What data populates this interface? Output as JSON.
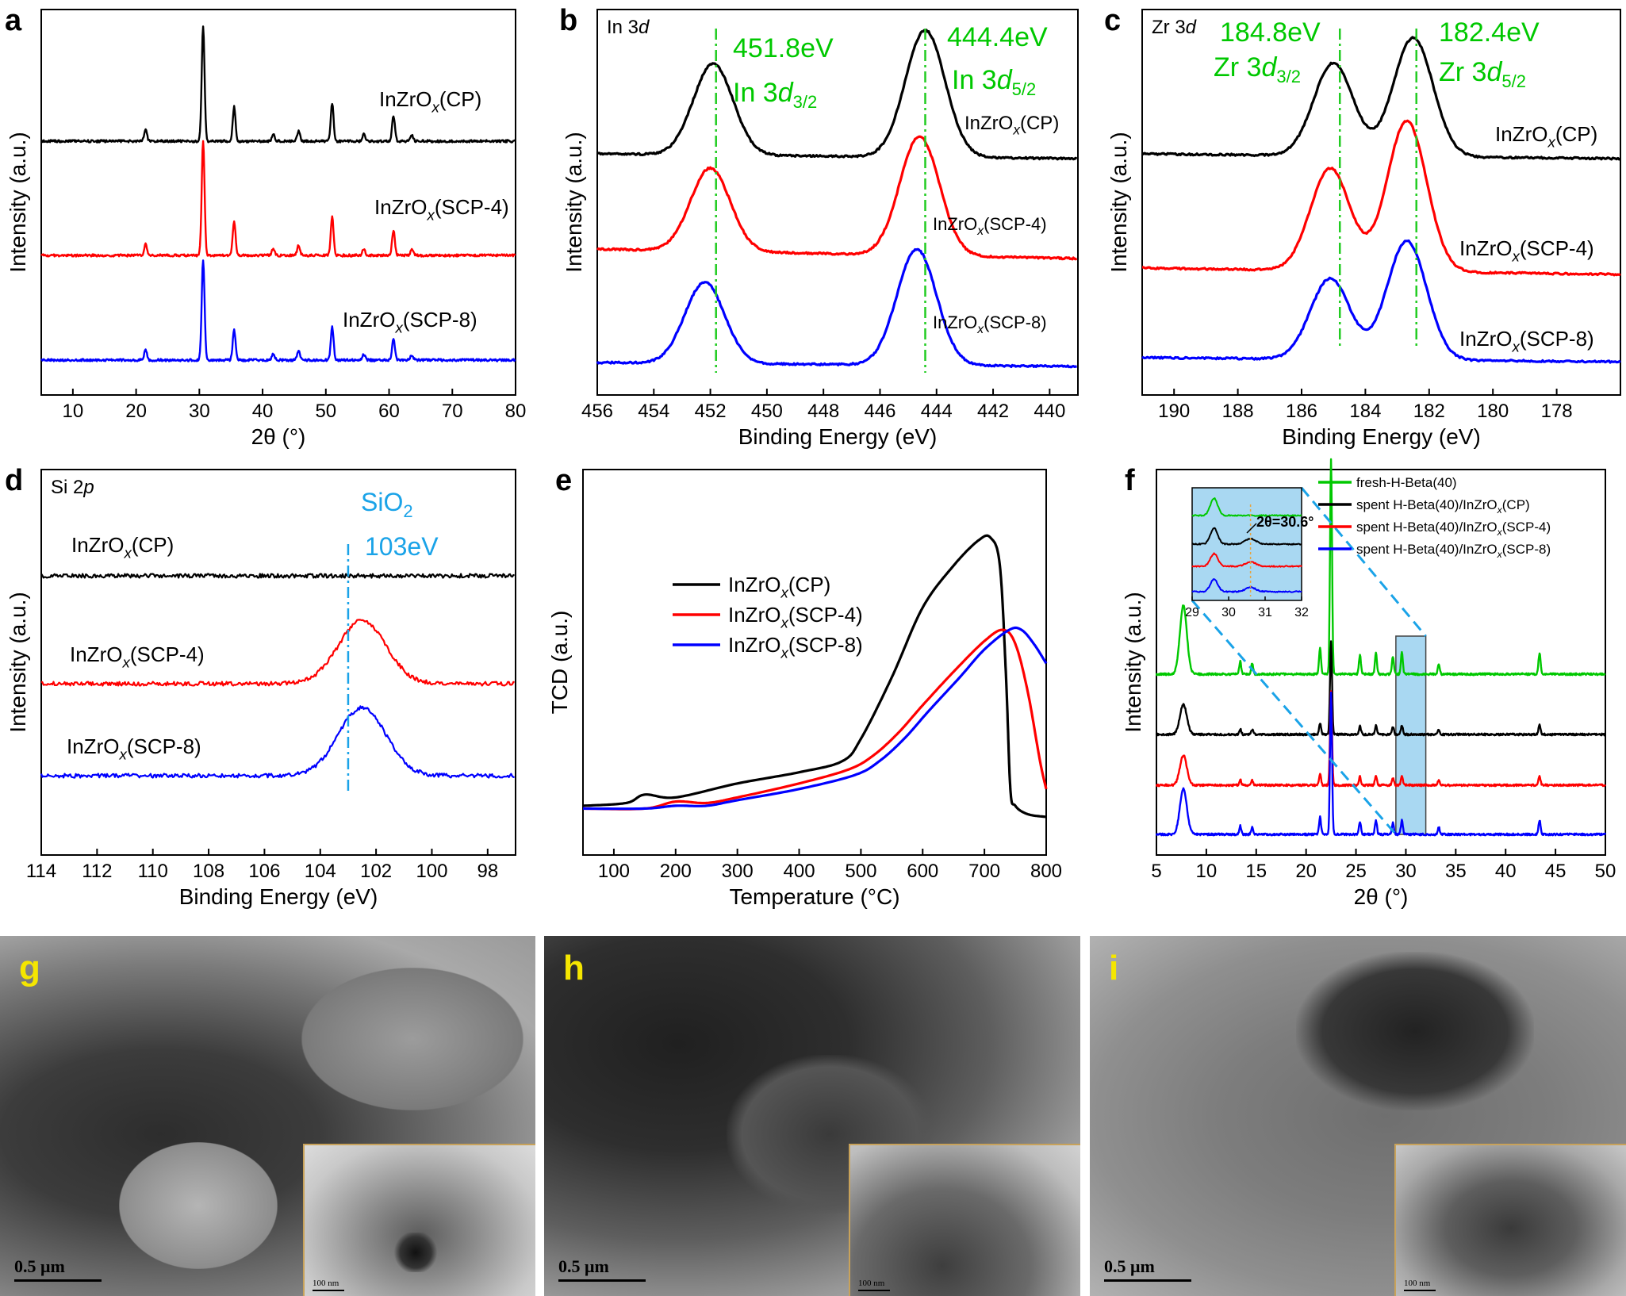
{
  "colors": {
    "black": "#000000",
    "red": "#ff0000",
    "blue": "#0000ff",
    "green": "#00c800",
    "lightblue": "#1aa3e8",
    "yellow": "#f5e600"
  },
  "panels": {
    "a": {
      "letter": "a"
    },
    "b": {
      "letter": "b",
      "label_main": "In 3",
      "label_sub": "d"
    },
    "c": {
      "letter": "c",
      "label_main": "Zr 3",
      "label_sub": "d"
    },
    "d": {
      "letter": "d",
      "label_main": "Si 2",
      "label_sub": "p"
    },
    "e": {
      "letter": "e"
    },
    "f": {
      "letter": "f"
    },
    "g": {
      "letter": "g",
      "scale_bar": "0.5 μm",
      "inset_scale_bar": "100 nm"
    },
    "h": {
      "letter": "h",
      "scale_bar": "0.5 μm",
      "inset_scale_bar": "100 nm"
    },
    "i": {
      "letter": "i",
      "scale_bar": "0.5 μm",
      "inset_scale_bar": "100 nm"
    }
  },
  "chart_data": [
    {
      "panel": "a",
      "type": "line",
      "xlabel": "2θ (°)",
      "ylabel": "Intensity (a.u.)",
      "xlim": [
        5,
        80
      ],
      "xticks": [
        10,
        20,
        30,
        40,
        50,
        60,
        70,
        80
      ],
      "series": [
        {
          "name": "InZrOx(CP)",
          "color": "#000000"
        },
        {
          "name": "InZrOx(SCP-4)",
          "color": "#ff0000"
        },
        {
          "name": "InZrOx(SCP-8)",
          "color": "#0000ff"
        }
      ],
      "peaks": [
        [
          21.5,
          0.1
        ],
        [
          30.6,
          1.0
        ],
        [
          35.5,
          0.3
        ],
        [
          41.7,
          0.06
        ],
        [
          45.7,
          0.09
        ],
        [
          51.0,
          0.33
        ],
        [
          56.0,
          0.06
        ],
        [
          60.7,
          0.22
        ],
        [
          63.6,
          0.05
        ]
      ]
    },
    {
      "panel": "b",
      "type": "line",
      "xlabel": "Binding Energy (eV)",
      "ylabel": "Intensity (a.u.)",
      "xlim": [
        456,
        439
      ],
      "xticks": [
        456,
        454,
        452,
        450,
        448,
        446,
        444,
        442,
        440
      ],
      "series": [
        {
          "name": "InZrOx(CP)",
          "color": "#000000",
          "peaks": [
            [
              451.9,
              0.72
            ],
            [
              444.4,
              1.0
            ]
          ]
        },
        {
          "name": "InZrOx(SCP-4)",
          "color": "#ff0000",
          "peaks": [
            [
              452.0,
              0.7
            ],
            [
              444.6,
              1.0
            ]
          ]
        },
        {
          "name": "InZrOx(SCP-8)",
          "color": "#0000ff",
          "peaks": [
            [
              452.2,
              0.7
            ],
            [
              444.7,
              1.0
            ]
          ]
        }
      ],
      "annotations": [
        {
          "text": "451.8eV",
          "x": 451.8,
          "sublabel_main": "In 3",
          "sublabel_italic": "d",
          "sublabel_sub": "3/2"
        },
        {
          "text": "444.4eV",
          "x": 444.4,
          "sublabel_main": "In 3",
          "sublabel_italic": "d",
          "sublabel_sub": "5/2"
        }
      ]
    },
    {
      "panel": "c",
      "type": "line",
      "xlabel": "Binding Energy (eV)",
      "ylabel": "Intensity (a.u.)",
      "xlim": [
        191,
        176
      ],
      "xticks": [
        190,
        188,
        186,
        184,
        182,
        180,
        178
      ],
      "series": [
        {
          "name": "InZrOx(CP)",
          "color": "#000000",
          "peaks": [
            [
              185.0,
              0.78
            ],
            [
              182.5,
              1.0
            ]
          ]
        },
        {
          "name": "InZrOx(SCP-4)",
          "color": "#ff0000",
          "peaks": [
            [
              185.1,
              0.68
            ],
            [
              182.7,
              1.0
            ]
          ]
        },
        {
          "name": "InZrOx(SCP-8)",
          "color": "#0000ff",
          "peaks": [
            [
              185.1,
              0.68
            ],
            [
              182.7,
              1.0
            ]
          ]
        }
      ],
      "annotations": [
        {
          "text": "184.8eV",
          "x": 184.8,
          "sublabel_main": "Zr 3",
          "sublabel_italic": "d",
          "sublabel_sub": "3/2"
        },
        {
          "text": "182.4eV",
          "x": 182.4,
          "sublabel_main": "Zr 3",
          "sublabel_italic": "d",
          "sublabel_sub": "5/2"
        }
      ]
    },
    {
      "panel": "d",
      "type": "line",
      "xlabel": "Binding Energy (eV)",
      "ylabel": "Intensity (a.u.)",
      "xlim": [
        114,
        97
      ],
      "xticks": [
        114,
        112,
        110,
        108,
        106,
        104,
        102,
        100,
        98
      ],
      "series": [
        {
          "name": "InZrOx(CP)",
          "color": "#000000"
        },
        {
          "name": "InZrOx(SCP-4)",
          "color": "#ff0000",
          "peak": [
            102.5,
            1.0
          ]
        },
        {
          "name": "InZrOx(SCP-8)",
          "color": "#0000ff",
          "peak": [
            102.5,
            1.0
          ]
        }
      ],
      "annotations": [
        {
          "text_main": "SiO",
          "text_sub": "2",
          "text2": "103eV",
          "x": 103.0
        }
      ]
    },
    {
      "panel": "e",
      "type": "line",
      "xlabel": "Temperature (°C)",
      "ylabel": "TCD (a.u.)",
      "xlim": [
        50,
        800
      ],
      "xticks": [
        100,
        200,
        300,
        400,
        500,
        600,
        700,
        800
      ],
      "legend": "center",
      "series": [
        {
          "name": "InZrOx(CP)",
          "color": "#000000",
          "x": [
            50,
            120,
            150,
            200,
            300,
            400,
            470,
            500,
            550,
            600,
            650,
            690,
            710,
            725,
            735,
            742,
            750,
            770,
            800
          ],
          "y": [
            0.04,
            0.05,
            0.08,
            0.07,
            0.12,
            0.16,
            0.2,
            0.28,
            0.5,
            0.75,
            0.9,
            0.99,
            1.0,
            0.9,
            0.5,
            0.1,
            0.04,
            0.01,
            0.0
          ]
        },
        {
          "name": "InZrOx(SCP-4)",
          "color": "#ff0000",
          "x": [
            50,
            150,
            200,
            250,
            300,
            400,
            480,
            520,
            560,
            600,
            650,
            700,
            730,
            750,
            770,
            790,
            800
          ],
          "y": [
            0.03,
            0.03,
            0.055,
            0.05,
            0.07,
            0.12,
            0.17,
            0.22,
            0.3,
            0.4,
            0.52,
            0.63,
            0.67,
            0.62,
            0.45,
            0.2,
            0.1
          ]
        },
        {
          "name": "InZrOx(SCP-8)",
          "color": "#0000ff",
          "x": [
            50,
            150,
            200,
            250,
            300,
            400,
            490,
            530,
            570,
            610,
            660,
            700,
            740,
            760,
            780,
            800
          ],
          "y": [
            0.03,
            0.03,
            0.04,
            0.04,
            0.06,
            0.1,
            0.15,
            0.2,
            0.28,
            0.38,
            0.5,
            0.6,
            0.67,
            0.67,
            0.62,
            0.55
          ]
        }
      ]
    },
    {
      "panel": "f",
      "type": "line",
      "xlabel": "2θ (°)",
      "ylabel": "Intensity (a.u.)",
      "xlim": [
        5,
        50
      ],
      "xticks": [
        5,
        10,
        15,
        20,
        25,
        30,
        35,
        40,
        45,
        50
      ],
      "highlight_range": [
        29,
        32
      ],
      "series": [
        {
          "name": "fresh-H-Beta(40)",
          "color": "#00c800"
        },
        {
          "name": "spent H-Beta(40)/InZrOx(CP)",
          "color": "#000000"
        },
        {
          "name": "spent H-Beta(40)/InZrOx(SCP-4)",
          "color": "#ff0000"
        },
        {
          "name": "spent H-Beta(40)/InZrOx(SCP-8)",
          "color": "#0000ff"
        }
      ],
      "peaks": [
        [
          7.7,
          0.32
        ],
        [
          13.4,
          0.06
        ],
        [
          14.6,
          0.05
        ],
        [
          21.4,
          0.12
        ],
        [
          22.5,
          1.0
        ],
        [
          25.4,
          0.09
        ],
        [
          27.0,
          0.1
        ],
        [
          28.7,
          0.08
        ],
        [
          29.6,
          0.1
        ],
        [
          33.3,
          0.05
        ],
        [
          43.4,
          0.1
        ]
      ],
      "inset": {
        "xlim": [
          29,
          32
        ],
        "xticks": [
          29,
          30,
          31,
          32
        ],
        "annotation": "2θ=30.6°",
        "marker_x": 30.6
      }
    }
  ]
}
